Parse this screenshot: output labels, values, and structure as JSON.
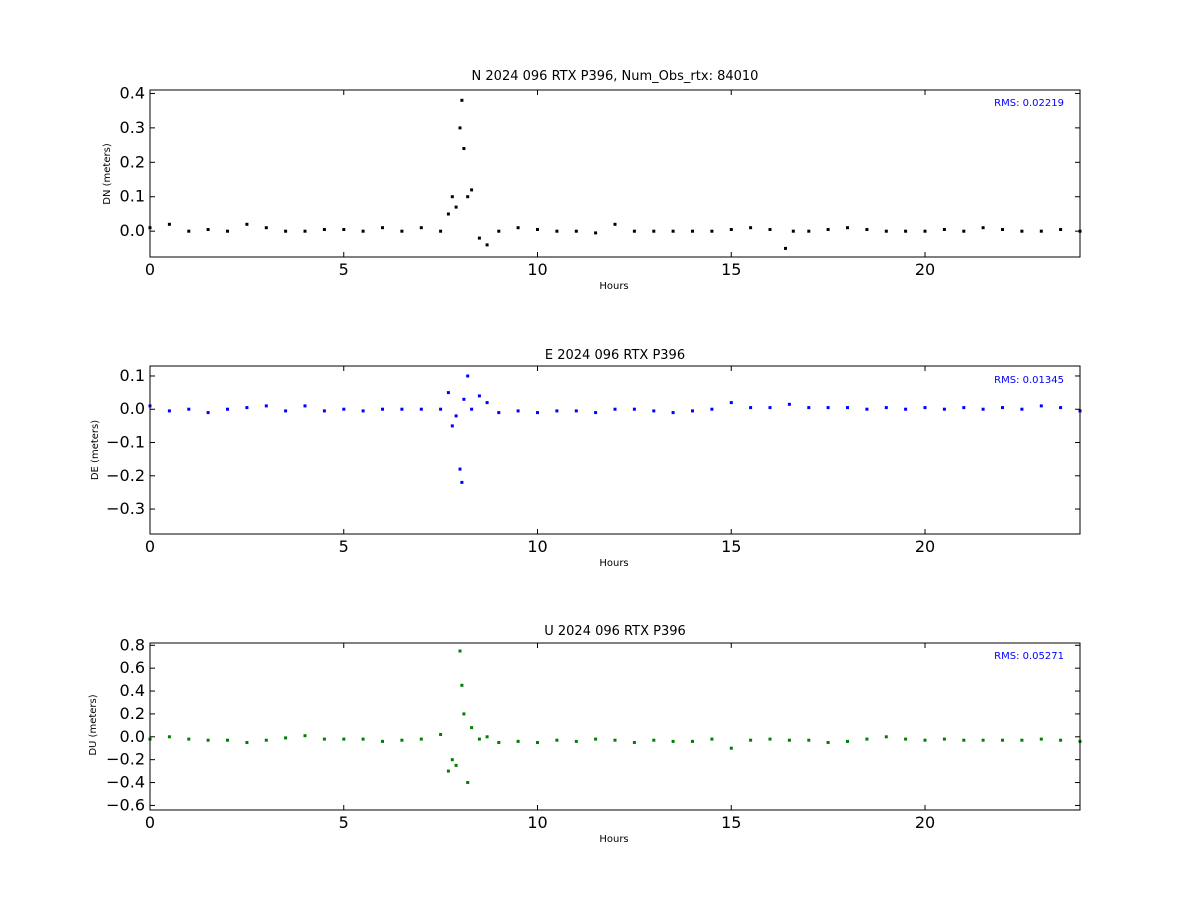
{
  "figure": {
    "xlabel": "Hours",
    "xticks": [
      0,
      5,
      10,
      15,
      20
    ],
    "xlim": [
      0,
      24
    ]
  },
  "chart_data": [
    {
      "type": "scatter",
      "title": "N 2024 096 RTX  P396, Num_Obs_rtx: 84010",
      "xlabel": "Hours",
      "ylabel": "DN (meters)",
      "xlim": [
        0,
        24
      ],
      "ylim": [
        -0.075,
        0.41
      ],
      "yticks": [
        {
          "value": 0.0,
          "label": "0.0"
        },
        {
          "value": 0.1,
          "label": "0.1"
        },
        {
          "value": 0.2,
          "label": "0.2"
        },
        {
          "value": 0.3,
          "label": "0.3"
        },
        {
          "value": 0.4,
          "label": "0.4"
        }
      ],
      "rms_label": "RMS:  0.02219",
      "color": "#000000",
      "grid": false,
      "series": [
        {
          "values": [
            [
              0.0,
              0.01
            ],
            [
              0.5,
              0.02
            ],
            [
              1.0,
              0.0
            ],
            [
              1.5,
              0.005
            ],
            [
              2.0,
              0.0
            ],
            [
              2.5,
              0.02
            ],
            [
              3.0,
              0.01
            ],
            [
              3.5,
              0.0
            ],
            [
              4.0,
              0.0
            ],
            [
              4.5,
              0.005
            ],
            [
              5.0,
              0.005
            ],
            [
              5.5,
              0.0
            ],
            [
              6.0,
              0.01
            ],
            [
              6.5,
              0.0
            ],
            [
              7.0,
              0.01
            ],
            [
              7.5,
              0.0
            ],
            [
              7.7,
              0.05
            ],
            [
              7.8,
              0.1
            ],
            [
              7.9,
              0.07
            ],
            [
              8.0,
              0.3
            ],
            [
              8.05,
              0.38
            ],
            [
              8.1,
              0.24
            ],
            [
              8.2,
              0.1
            ],
            [
              8.3,
              0.12
            ],
            [
              8.5,
              -0.02
            ],
            [
              8.7,
              -0.04
            ],
            [
              9.0,
              0.0
            ],
            [
              9.5,
              0.01
            ],
            [
              10.0,
              0.005
            ],
            [
              10.5,
              0.0
            ],
            [
              11.0,
              0.0
            ],
            [
              11.5,
              -0.005
            ],
            [
              12.0,
              0.02
            ],
            [
              12.5,
              0.0
            ],
            [
              13.0,
              0.0
            ],
            [
              13.5,
              0.0
            ],
            [
              14.0,
              0.0
            ],
            [
              14.5,
              0.0
            ],
            [
              15.0,
              0.005
            ],
            [
              15.5,
              0.01
            ],
            [
              16.0,
              0.005
            ],
            [
              16.4,
              -0.05
            ],
            [
              16.6,
              0.0
            ],
            [
              17.0,
              0.0
            ],
            [
              17.5,
              0.005
            ],
            [
              18.0,
              0.01
            ],
            [
              18.5,
              0.005
            ],
            [
              19.0,
              0.0
            ],
            [
              19.5,
              0.0
            ],
            [
              20.0,
              0.0
            ],
            [
              20.5,
              0.005
            ],
            [
              21.0,
              0.0
            ],
            [
              21.5,
              0.01
            ],
            [
              22.0,
              0.005
            ],
            [
              22.5,
              0.0
            ],
            [
              23.0,
              0.0
            ],
            [
              23.5,
              0.005
            ],
            [
              24.0,
              0.0
            ]
          ]
        }
      ]
    },
    {
      "type": "scatter",
      "title": "E 2024 096 RTX  P396",
      "xlabel": "Hours",
      "ylabel": "DE (meters)",
      "xlim": [
        0,
        24
      ],
      "ylim": [
        -0.375,
        0.13
      ],
      "yticks": [
        {
          "value": -0.3,
          "label": "−0.3"
        },
        {
          "value": -0.2,
          "label": "−0.2"
        },
        {
          "value": -0.1,
          "label": "−0.1"
        },
        {
          "value": 0.0,
          "label": "0.0"
        },
        {
          "value": 0.1,
          "label": "0.1"
        }
      ],
      "rms_label": "RMS:  0.01345",
      "color": "#0000ff",
      "grid": false,
      "series": [
        {
          "values": [
            [
              0.0,
              0.01
            ],
            [
              0.5,
              -0.005
            ],
            [
              1.0,
              0.0
            ],
            [
              1.5,
              -0.01
            ],
            [
              2.0,
              0.0
            ],
            [
              2.5,
              0.005
            ],
            [
              3.0,
              0.01
            ],
            [
              3.5,
              -0.005
            ],
            [
              4.0,
              0.01
            ],
            [
              4.5,
              -0.005
            ],
            [
              5.0,
              0.0
            ],
            [
              5.5,
              -0.005
            ],
            [
              6.0,
              0.0
            ],
            [
              6.5,
              0.0
            ],
            [
              7.0,
              0.0
            ],
            [
              7.5,
              0.0
            ],
            [
              7.7,
              0.05
            ],
            [
              7.8,
              -0.05
            ],
            [
              7.9,
              -0.02
            ],
            [
              8.0,
              -0.18
            ],
            [
              8.05,
              -0.22
            ],
            [
              8.1,
              0.03
            ],
            [
              8.2,
              0.1
            ],
            [
              8.3,
              0.0
            ],
            [
              8.5,
              0.04
            ],
            [
              8.7,
              0.02
            ],
            [
              9.0,
              -0.01
            ],
            [
              9.5,
              -0.005
            ],
            [
              10.0,
              -0.01
            ],
            [
              10.5,
              -0.005
            ],
            [
              11.0,
              -0.005
            ],
            [
              11.5,
              -0.01
            ],
            [
              12.0,
              0.0
            ],
            [
              12.5,
              0.0
            ],
            [
              13.0,
              -0.005
            ],
            [
              13.5,
              -0.01
            ],
            [
              14.0,
              -0.005
            ],
            [
              14.5,
              0.0
            ],
            [
              15.0,
              0.02
            ],
            [
              15.5,
              0.005
            ],
            [
              16.0,
              0.005
            ],
            [
              16.5,
              0.015
            ],
            [
              17.0,
              0.005
            ],
            [
              17.5,
              0.005
            ],
            [
              18.0,
              0.005
            ],
            [
              18.5,
              0.0
            ],
            [
              19.0,
              0.005
            ],
            [
              19.5,
              0.0
            ],
            [
              20.0,
              0.005
            ],
            [
              20.5,
              0.0
            ],
            [
              21.0,
              0.005
            ],
            [
              21.5,
              0.0
            ],
            [
              22.0,
              0.005
            ],
            [
              22.5,
              0.0
            ],
            [
              23.0,
              0.01
            ],
            [
              23.5,
              0.005
            ],
            [
              24.0,
              -0.005
            ]
          ]
        }
      ]
    },
    {
      "type": "scatter",
      "title": "U 2024 096 RTX  P396",
      "xlabel": "Hours",
      "ylabel": "DU (meters)",
      "xlim": [
        0,
        24
      ],
      "ylim": [
        -0.64,
        0.82
      ],
      "yticks": [
        {
          "value": -0.6,
          "label": "−0.6"
        },
        {
          "value": -0.4,
          "label": "−0.4"
        },
        {
          "value": -0.2,
          "label": "−0.2"
        },
        {
          "value": 0.0,
          "label": "0.0"
        },
        {
          "value": 0.2,
          "label": "0.2"
        },
        {
          "value": 0.4,
          "label": "0.4"
        },
        {
          "value": 0.6,
          "label": "0.6"
        },
        {
          "value": 0.8,
          "label": "0.8"
        }
      ],
      "rms_label": "RMS:  0.05271",
      "color": "#008000",
      "grid": false,
      "series": [
        {
          "values": [
            [
              0.0,
              -0.02
            ],
            [
              0.5,
              0.0
            ],
            [
              1.0,
              -0.02
            ],
            [
              1.5,
              -0.03
            ],
            [
              2.0,
              -0.03
            ],
            [
              2.5,
              -0.05
            ],
            [
              3.0,
              -0.03
            ],
            [
              3.5,
              -0.01
            ],
            [
              4.0,
              0.01
            ],
            [
              4.5,
              -0.02
            ],
            [
              5.0,
              -0.02
            ],
            [
              5.5,
              -0.02
            ],
            [
              6.0,
              -0.04
            ],
            [
              6.5,
              -0.03
            ],
            [
              7.0,
              -0.02
            ],
            [
              7.5,
              0.02
            ],
            [
              7.7,
              -0.3
            ],
            [
              7.8,
              -0.2
            ],
            [
              7.9,
              -0.25
            ],
            [
              8.0,
              0.75
            ],
            [
              8.05,
              0.45
            ],
            [
              8.1,
              0.2
            ],
            [
              8.2,
              -0.4
            ],
            [
              8.3,
              0.08
            ],
            [
              8.5,
              -0.02
            ],
            [
              8.7,
              0.0
            ],
            [
              9.0,
              -0.05
            ],
            [
              9.5,
              -0.04
            ],
            [
              10.0,
              -0.05
            ],
            [
              10.5,
              -0.03
            ],
            [
              11.0,
              -0.04
            ],
            [
              11.5,
              -0.02
            ],
            [
              12.0,
              -0.03
            ],
            [
              12.5,
              -0.05
            ],
            [
              13.0,
              -0.03
            ],
            [
              13.5,
              -0.04
            ],
            [
              14.0,
              -0.04
            ],
            [
              14.5,
              -0.02
            ],
            [
              15.0,
              -0.1
            ],
            [
              15.5,
              -0.03
            ],
            [
              16.0,
              -0.02
            ],
            [
              16.5,
              -0.03
            ],
            [
              17.0,
              -0.03
            ],
            [
              17.5,
              -0.05
            ],
            [
              18.0,
              -0.04
            ],
            [
              18.5,
              -0.02
            ],
            [
              19.0,
              0.0
            ],
            [
              19.5,
              -0.02
            ],
            [
              20.0,
              -0.03
            ],
            [
              20.5,
              -0.02
            ],
            [
              21.0,
              -0.03
            ],
            [
              21.5,
              -0.03
            ],
            [
              22.0,
              -0.03
            ],
            [
              22.5,
              -0.03
            ],
            [
              23.0,
              -0.02
            ],
            [
              23.5,
              -0.03
            ],
            [
              24.0,
              -0.04
            ]
          ]
        }
      ]
    }
  ]
}
